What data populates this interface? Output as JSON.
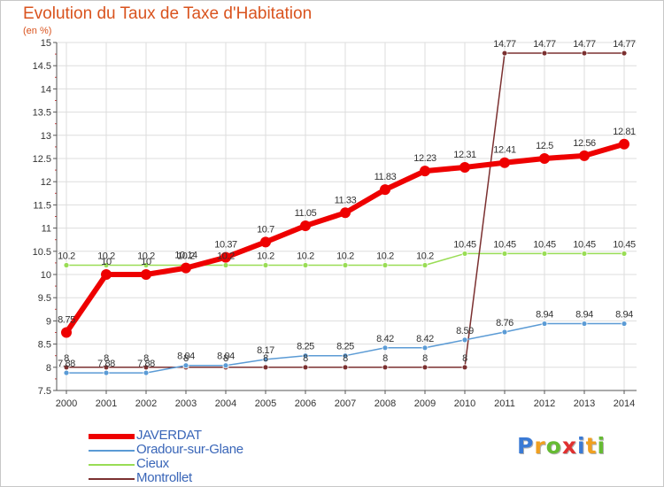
{
  "chart_data": {
    "type": "line",
    "title": "Evolution du Taux de Taxe d'Habitation",
    "subtitle": "(en %)",
    "xlabel": "",
    "ylabel": "",
    "ylim": [
      7.5,
      15
    ],
    "y_ticks": [
      "7.5",
      "8",
      "8.5",
      "9",
      "9.5",
      "10",
      "10.5",
      "11",
      "11.5",
      "12",
      "12.5",
      "13",
      "13.5",
      "14",
      "14.5",
      "15"
    ],
    "categories": [
      "2000",
      "2001",
      "2002",
      "2003",
      "2004",
      "2005",
      "2006",
      "2007",
      "2008",
      "2009",
      "2010",
      "2011",
      "2012",
      "2013",
      "2014"
    ],
    "grid": true,
    "legend_position": "bottom-left",
    "series": [
      {
        "name": "JAVERDAT",
        "color": "#ee0000",
        "values": [
          8.75,
          10,
          10,
          10.14,
          10.37,
          10.7,
          11.05,
          11.33,
          11.83,
          12.23,
          12.31,
          12.41,
          12.5,
          12.56,
          12.81
        ],
        "labels": [
          "8.75",
          "10",
          "10",
          "10.14",
          "10.37",
          "10.7",
          "11.05",
          "11.33",
          "11.83",
          "12.23",
          "12.31",
          "12.41",
          "12.5",
          "12.56",
          "12.81"
        ]
      },
      {
        "name": "Oradour-sur-Glane",
        "color": "#5b9bd5",
        "values": [
          7.88,
          7.88,
          7.88,
          8.04,
          8.04,
          8.17,
          8.25,
          8.25,
          8.42,
          8.42,
          8.59,
          8.76,
          8.94,
          8.94,
          8.94
        ],
        "labels": [
          "7.88",
          "7.88",
          "7.88",
          "8.04",
          "8.04",
          "8.17",
          "8.25",
          "8.25",
          "8.42",
          "8.42",
          "8.59",
          "8.76",
          "8.94",
          "8.94",
          "8.94"
        ]
      },
      {
        "name": "Cieux",
        "color": "#99dd55",
        "values": [
          10.2,
          10.2,
          10.2,
          10.2,
          10.2,
          10.2,
          10.2,
          10.2,
          10.2,
          10.2,
          10.45,
          10.45,
          10.45,
          10.45,
          10.45
        ],
        "labels": [
          "10.2",
          "10.2",
          "10.2",
          "10.2",
          "10.2",
          "10.2",
          "10.2",
          "10.2",
          "10.2",
          "10.2",
          "10.45",
          "10.45",
          "10.45",
          "10.45",
          "10.45"
        ]
      },
      {
        "name": "Montrollet",
        "color": "#7b3030",
        "values": [
          8,
          8,
          8,
          8,
          8,
          8,
          8,
          8,
          8,
          8,
          8,
          14.77,
          14.77,
          14.77,
          14.77
        ],
        "labels": [
          "8",
          "8",
          "8",
          "8",
          "8",
          "8",
          "8",
          "8",
          "8",
          "8",
          "8",
          "14.77",
          "14.77",
          "14.77",
          "14.77"
        ]
      }
    ]
  },
  "logo": {
    "letters": [
      "P",
      "r",
      "o",
      "x",
      "i",
      "t",
      "i"
    ],
    "colors": [
      "#3a7ad5",
      "#f0a020",
      "#66bb33",
      "#e03030",
      "#3a7ad5",
      "#f0a020",
      "#66bb33"
    ]
  }
}
